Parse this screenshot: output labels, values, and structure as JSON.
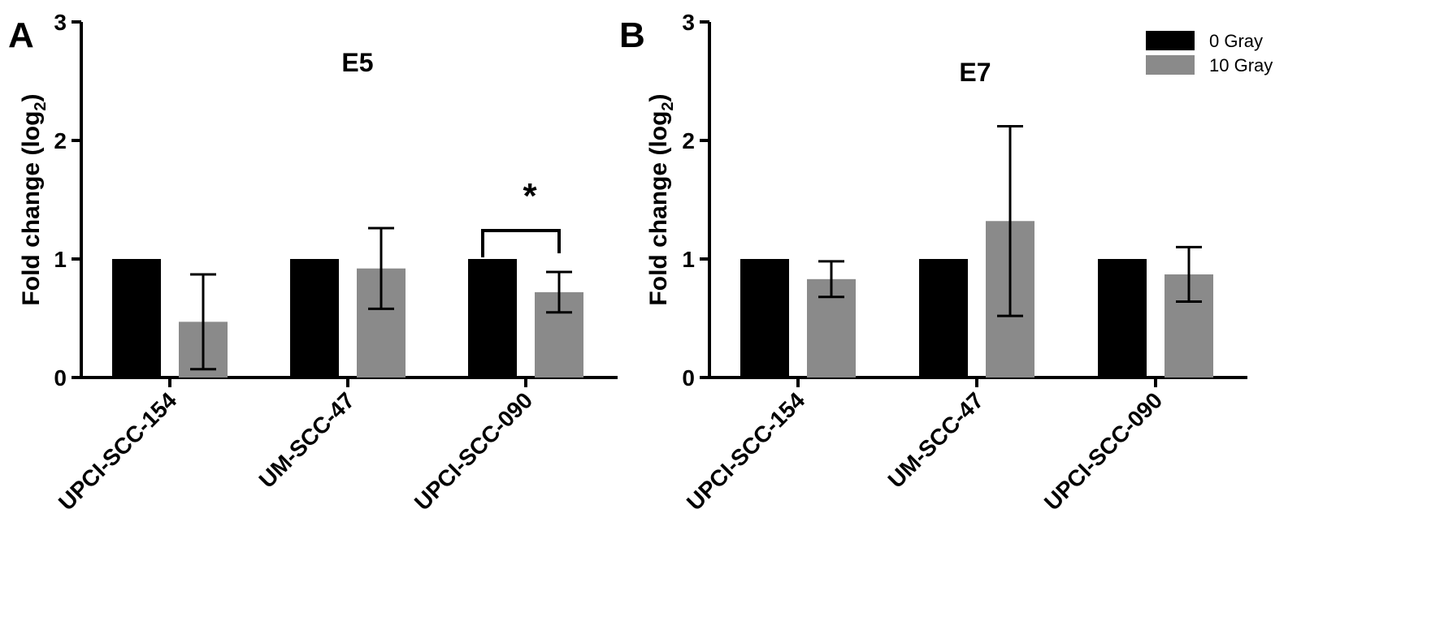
{
  "colors": {
    "series_0gray": "#000000",
    "series_10gray": "#8a8a8a",
    "axis": "#000000"
  },
  "legend": {
    "items": [
      {
        "label": "0 Gray",
        "color": "#000000"
      },
      {
        "label": "10 Gray",
        "color": "#8a8a8a"
      }
    ],
    "placement": "top-right"
  },
  "chart_data": [
    {
      "panel": "A",
      "type": "bar",
      "title": "E5",
      "ylabel": "Fold change (log2)",
      "ylabel_main": "Fold change (log",
      "ylabel_sub": "2",
      "ylabel_close": ")",
      "ylim": [
        0,
        3
      ],
      "yticks": [
        "0",
        "1",
        "2",
        "3"
      ],
      "categories": [
        "UPCI-SCC-154",
        "UM-SCC-47",
        "UPCI-SCC-090"
      ],
      "series": [
        {
          "name": "0 Gray",
          "values": [
            1.0,
            1.0,
            1.0
          ],
          "errors": [
            0,
            0,
            0
          ]
        },
        {
          "name": "10 Gray",
          "values": [
            0.47,
            0.92,
            0.72
          ],
          "errors": [
            0.4,
            0.34,
            0.17
          ]
        }
      ],
      "annotations": [
        {
          "category_index": 2,
          "text": "*"
        }
      ],
      "grid": false
    },
    {
      "panel": "B",
      "type": "bar",
      "title": "E7",
      "ylabel": "Fold change (log2)",
      "ylabel_main": "Fold change (log",
      "ylabel_sub": "2",
      "ylabel_close": ")",
      "ylim": [
        0,
        3
      ],
      "yticks": [
        "0",
        "1",
        "2",
        "3"
      ],
      "categories": [
        "UPCI-SCC-154",
        "UM-SCC-47",
        "UPCI-SCC-090"
      ],
      "series": [
        {
          "name": "0 Gray",
          "values": [
            1.0,
            1.0,
            1.0
          ],
          "errors": [
            0,
            0,
            0
          ]
        },
        {
          "name": "10 Gray",
          "values": [
            0.83,
            1.32,
            0.87
          ],
          "errors": [
            0.15,
            0.8,
            0.23
          ]
        }
      ],
      "annotations": [],
      "grid": false
    }
  ]
}
